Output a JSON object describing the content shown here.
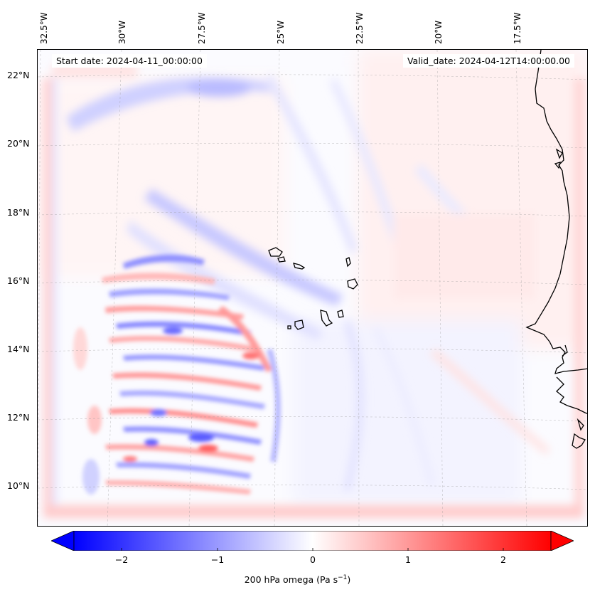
{
  "map": {
    "start_date": "Start date: 2024-04-11_00:00:00",
    "valid_date": "Valid_date: 2024-04-12T14:00:00.00",
    "longitude_labels": [
      "32.5°W",
      "30°W",
      "27.5°W",
      "25°W",
      "22.5°W",
      "20°W",
      "17.5°W"
    ],
    "latitude_labels": [
      "22°N",
      "20°N",
      "18°N",
      "16°N",
      "14°N",
      "12°N",
      "10°N"
    ],
    "variable": "200 hPa omega"
  },
  "colorbar": {
    "label_prefix": "200 hPa omega (Pa s",
    "label_exponent": "−1",
    "label_suffix": ")",
    "ticks": [
      "−2",
      "−1",
      "0",
      "1",
      "2"
    ],
    "range": [
      -2.7,
      2.7
    ],
    "colormap": "bwr",
    "colors": {
      "negative": "#0000ff",
      "zero": "#ffffff",
      "positive": "#ff0000"
    }
  }
}
